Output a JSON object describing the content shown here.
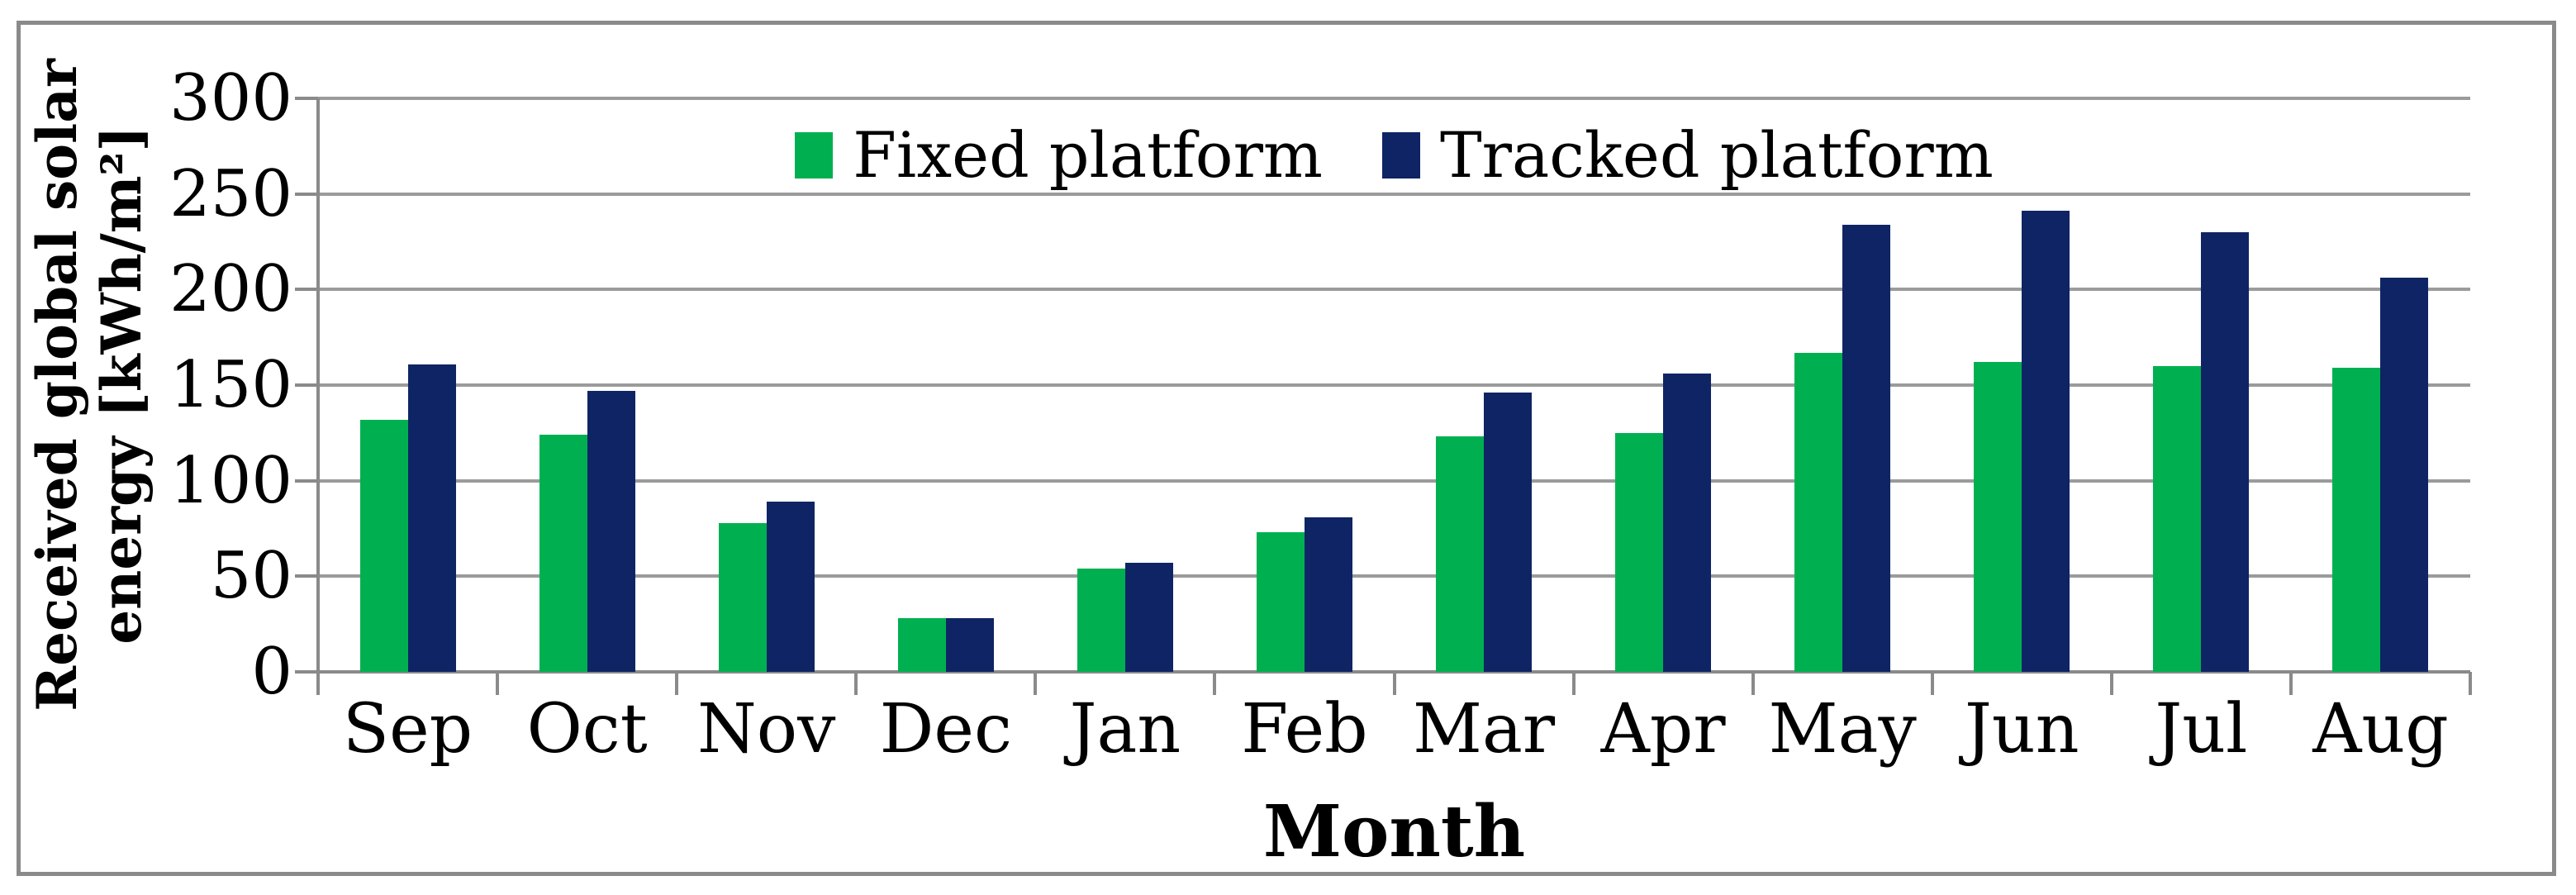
{
  "figure": {
    "y_axis": {
      "title_line1": "Received global solar",
      "title_line2": "energy [kWh/m²]",
      "tick_labels": [
        "0",
        "50",
        "100",
        "150",
        "200",
        "250",
        "300"
      ]
    },
    "x_axis": {
      "title": "Month"
    },
    "legend": {
      "items": [
        {
          "label": "Fixed platform",
          "color": "#00B050"
        },
        {
          "label": "Tracked platform",
          "color": "#0F2464"
        }
      ]
    },
    "colors": {
      "fixed_green": "#00B050",
      "tracked_navy": "#0F2464",
      "gridline_gray": "#9b9b9b",
      "axis_gray": "#8a8a8a",
      "frame_gray": "#8a8a8a"
    }
  },
  "chart_data": {
    "type": "bar",
    "title": "",
    "categories": [
      "Sep",
      "Oct",
      "Nov",
      "Dec",
      "Jan",
      "Feb",
      "Mar",
      "Apr",
      "May",
      "Jun",
      "Jul",
      "Aug"
    ],
    "series": [
      {
        "name": "Fixed platform",
        "color": "#00B050",
        "values": [
          132,
          124,
          78,
          28,
          54,
          73,
          123,
          125,
          167,
          162,
          160,
          159
        ]
      },
      {
        "name": "Tracked platform",
        "color": "#0F2464",
        "values": [
          161,
          147,
          89,
          28,
          57,
          81,
          146,
          156,
          234,
          241,
          230,
          206
        ]
      }
    ],
    "xlabel": "Month",
    "ylabel": "Received global solar energy [kWh/m²]",
    "ylim": [
      0,
      300
    ],
    "yticks": [
      0,
      50,
      100,
      150,
      200,
      250,
      300
    ],
    "grid": "horizontal-only",
    "legend_position": "top-center-inside-plot"
  }
}
